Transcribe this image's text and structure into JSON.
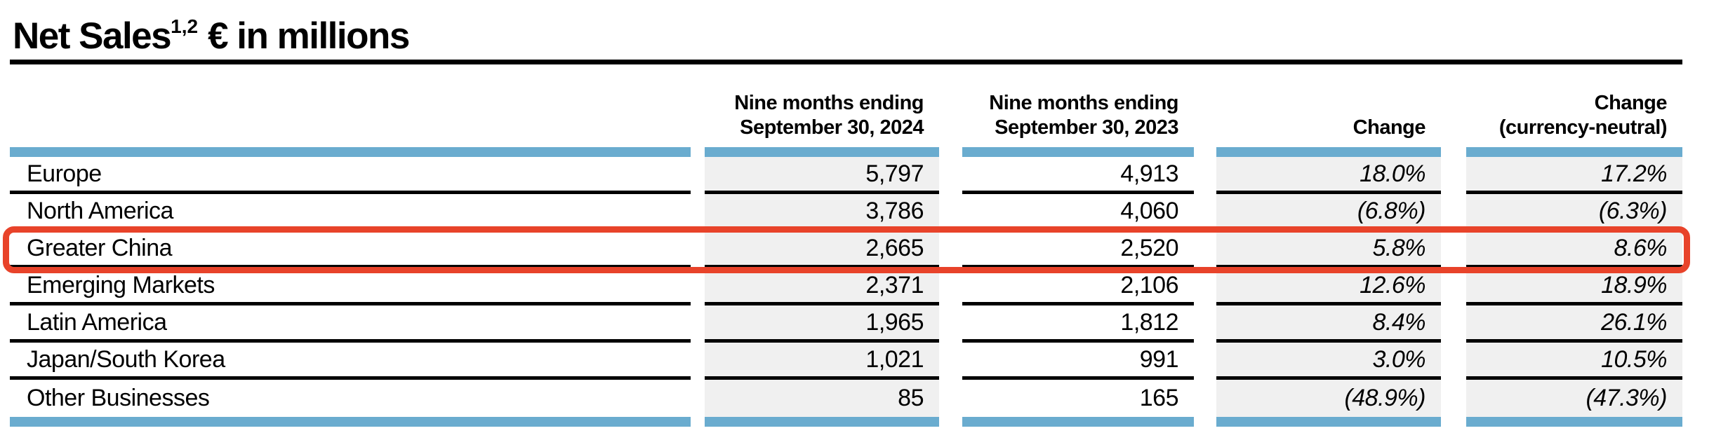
{
  "title": {
    "text": "Net Sales",
    "footnote_marker": "1,2",
    "unit_label": "€ in millions"
  },
  "table": {
    "columns": {
      "region": {
        "line1": "",
        "line2": ""
      },
      "period_2024": {
        "line1": "Nine months ending",
        "line2": "September 30, 2024"
      },
      "period_2023": {
        "line1": "Nine months ending",
        "line2": "September 30, 2023"
      },
      "change": {
        "line1": "",
        "line2": "Change"
      },
      "change_cn": {
        "line1": "Change",
        "line2": "(currency-neutral)"
      }
    },
    "rows": [
      {
        "region": "Europe",
        "v2024": "5,797",
        "v2023": "4,913",
        "change": "18.0%",
        "change_cn": "17.2%",
        "highlighted": false
      },
      {
        "region": "North America",
        "v2024": "3,786",
        "v2023": "4,060",
        "change": "(6.8%)",
        "change_cn": "(6.3%)",
        "highlighted": false
      },
      {
        "region": "Greater China",
        "v2024": "2,665",
        "v2023": "2,520",
        "change": "5.8%",
        "change_cn": "8.6%",
        "highlighted": true
      },
      {
        "region": "Emerging Markets",
        "v2024": "2,371",
        "v2023": "2,106",
        "change": "12.6%",
        "change_cn": "18.9%",
        "highlighted": false
      },
      {
        "region": "Latin America",
        "v2024": "1,965",
        "v2023": "1,812",
        "change": "8.4%",
        "change_cn": "26.1%",
        "highlighted": false
      },
      {
        "region": "Japan/South Korea",
        "v2024": "1,021",
        "v2023": "991",
        "change": "3.0%",
        "change_cn": "10.5%",
        "highlighted": false
      },
      {
        "region": "Other Businesses",
        "v2024": "85",
        "v2023": "165",
        "change": "(48.9%)",
        "change_cn": "(47.3%)",
        "highlighted": false
      }
    ]
  },
  "annotation": {
    "type": "highlight-box",
    "target_row": "Greater China",
    "color": "#e8432a"
  },
  "colors": {
    "accent_blue": "#6aaccf",
    "column_gray": "#f0f0f0",
    "highlight_red": "#e8432a",
    "line_black": "#000000"
  }
}
